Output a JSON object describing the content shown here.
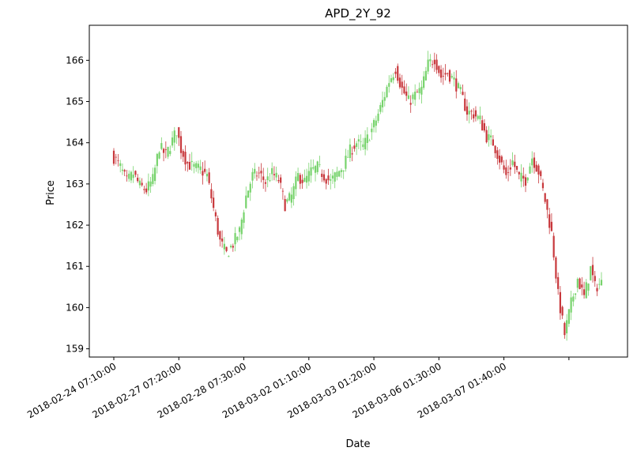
{
  "chart_data": {
    "type": "candlestick",
    "title": "APD_2Y_92",
    "xlabel": "Date",
    "ylabel": "Price",
    "ylim": [
      158.8,
      166.85
    ],
    "yticks": [
      159,
      160,
      161,
      162,
      163,
      164,
      165,
      166
    ],
    "xticks": [
      "2018-02-24 07:10:00",
      "2018-02-27 07:20:00",
      "2018-02-28 07:30:00",
      "2018-03-02 01:10:00",
      "2018-03-03 01:20:00",
      "2018-03-06 01:30:00",
      "2018-03-07 01:40:00"
    ],
    "up_color": "#77d36c",
    "down_color": "#c8383c",
    "close_path": [
      [
        0,
        163.65
      ],
      [
        3,
        163.4
      ],
      [
        6,
        163.05
      ],
      [
        9,
        163.25
      ],
      [
        12,
        162.95
      ],
      [
        15,
        162.85
      ],
      [
        18,
        163.1
      ],
      [
        21,
        163.9
      ],
      [
        24,
        163.7
      ],
      [
        27,
        164.05
      ],
      [
        29,
        164.3
      ],
      [
        31,
        163.85
      ],
      [
        34,
        163.5
      ],
      [
        37,
        163.4
      ],
      [
        40,
        163.35
      ],
      [
        43,
        163.2
      ],
      [
        46,
        162.4
      ],
      [
        49,
        161.6
      ],
      [
        52,
        161.3
      ],
      [
        55,
        161.55
      ],
      [
        58,
        161.85
      ],
      [
        61,
        162.7
      ],
      [
        64,
        163.2
      ],
      [
        67,
        163.25
      ],
      [
        70,
        163.05
      ],
      [
        73,
        163.25
      ],
      [
        76,
        163.1
      ],
      [
        79,
        162.5
      ],
      [
        82,
        162.7
      ],
      [
        85,
        163.2
      ],
      [
        88,
        163.05
      ],
      [
        91,
        163.3
      ],
      [
        94,
        163.4
      ],
      [
        97,
        163.2
      ],
      [
        100,
        163.05
      ],
      [
        103,
        163.25
      ],
      [
        106,
        163.45
      ],
      [
        109,
        163.8
      ],
      [
        112,
        164.0
      ],
      [
        115,
        163.9
      ],
      [
        118,
        164.2
      ],
      [
        121,
        164.55
      ],
      [
        124,
        165.0
      ],
      [
        127,
        165.5
      ],
      [
        130,
        165.8
      ],
      [
        133,
        165.3
      ],
      [
        136,
        165.0
      ],
      [
        139,
        165.15
      ],
      [
        142,
        165.3
      ],
      [
        145,
        165.9
      ],
      [
        148,
        166.05
      ],
      [
        151,
        165.6
      ],
      [
        154,
        165.7
      ],
      [
        157,
        165.5
      ],
      [
        160,
        165.2
      ],
      [
        163,
        164.75
      ],
      [
        166,
        164.7
      ],
      [
        169,
        164.55
      ],
      [
        172,
        164.15
      ],
      [
        175,
        164.0
      ],
      [
        178,
        163.6
      ],
      [
        181,
        163.2
      ],
      [
        184,
        163.55
      ],
      [
        187,
        163.15
      ],
      [
        190,
        163.1
      ],
      [
        193,
        163.65
      ],
      [
        196,
        163.3
      ],
      [
        199,
        162.6
      ],
      [
        202,
        161.8
      ],
      [
        205,
        160.3
      ],
      [
        208,
        159.35
      ],
      [
        211,
        160.1
      ],
      [
        214,
        160.7
      ],
      [
        217,
        160.25
      ],
      [
        220,
        160.95
      ],
      [
        222,
        160.5
      ],
      [
        225,
        160.6
      ]
    ]
  }
}
